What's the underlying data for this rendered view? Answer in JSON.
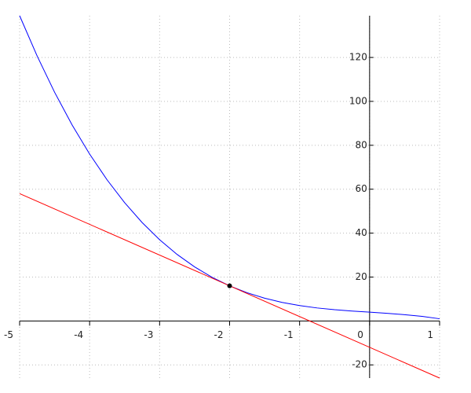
{
  "chart_data": {
    "type": "line",
    "xlim": [
      -5,
      1
    ],
    "ylim": [
      -26,
      139
    ],
    "xticks": [
      -5,
      -4,
      -3,
      -2,
      -1,
      0,
      1
    ],
    "yticks": [
      -20,
      20,
      40,
      60,
      80,
      100,
      120
    ],
    "grid": true,
    "series": [
      {
        "color": "#0000ff",
        "x": [
          -5,
          -4.75,
          -4.5,
          -4.25,
          -4,
          -3.75,
          -3.5,
          -3.25,
          -3,
          -2.75,
          -2.5,
          -2.25,
          -2,
          -1.75,
          -1.5,
          -1.25,
          -1,
          -0.75,
          -0.5,
          -0.25,
          0,
          0.25,
          0.5,
          0.75,
          1
        ],
        "values": [
          139,
          120.671875,
          104.125,
          89.265625,
          76,
          64.234375,
          53.875,
          44.828125,
          37,
          30.296875,
          24.625,
          19.890625,
          16,
          12.859375,
          10.375,
          8.453125,
          7,
          5.921875,
          5.125,
          4.515625,
          4,
          3.484375,
          2.875,
          2.078125,
          1
        ]
      },
      {
        "color": "#ff0000",
        "x": [
          -5,
          1
        ],
        "values": [
          58,
          -26
        ]
      },
      {
        "color": "#000000",
        "marker": "circle",
        "x": [
          -2
        ],
        "values": [
          16
        ]
      }
    ]
  }
}
